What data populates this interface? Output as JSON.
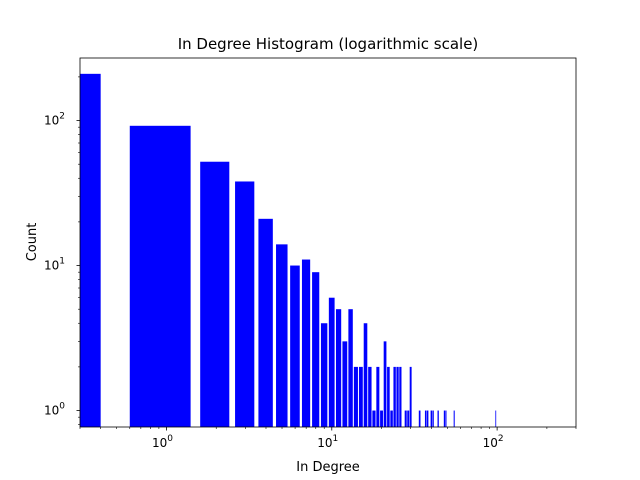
{
  "chart_data": {
    "type": "bar",
    "title": "In Degree Histogram (logarithmic scale)",
    "xlabel": "In Degree",
    "ylabel": "Count",
    "xscale": "log",
    "yscale": "log",
    "xlim": [
      0.3,
      300
    ],
    "ylim": [
      0.77,
      270
    ],
    "grid": false,
    "bar_color": "#0000ff",
    "x_ticks": [
      {
        "value": 1,
        "base": "10",
        "exp": "0"
      },
      {
        "value": 10,
        "base": "10",
        "exp": "1"
      },
      {
        "value": 100,
        "base": "10",
        "exp": "2"
      }
    ],
    "y_ticks": [
      {
        "value": 1,
        "base": "10",
        "exp": "0"
      },
      {
        "value": 10,
        "base": "10",
        "exp": "1"
      },
      {
        "value": 100,
        "base": "10",
        "exp": "2"
      }
    ],
    "bars": [
      {
        "x": 0,
        "count": 210
      },
      {
        "x": 1,
        "count": 92
      },
      {
        "x": 2,
        "count": 52
      },
      {
        "x": 3,
        "count": 38
      },
      {
        "x": 4,
        "count": 21
      },
      {
        "x": 5,
        "count": 14
      },
      {
        "x": 6,
        "count": 10
      },
      {
        "x": 7,
        "count": 11
      },
      {
        "x": 8,
        "count": 9
      },
      {
        "x": 9,
        "count": 4
      },
      {
        "x": 10,
        "count": 6
      },
      {
        "x": 11,
        "count": 5
      },
      {
        "x": 12,
        "count": 3
      },
      {
        "x": 13,
        "count": 5
      },
      {
        "x": 14,
        "count": 2
      },
      {
        "x": 15,
        "count": 2
      },
      {
        "x": 16,
        "count": 4
      },
      {
        "x": 17,
        "count": 2
      },
      {
        "x": 18,
        "count": 1
      },
      {
        "x": 19,
        "count": 2
      },
      {
        "x": 20,
        "count": 1
      },
      {
        "x": 21,
        "count": 3
      },
      {
        "x": 22,
        "count": 2
      },
      {
        "x": 23,
        "count": 1
      },
      {
        "x": 24,
        "count": 2
      },
      {
        "x": 25,
        "count": 2
      },
      {
        "x": 26,
        "count": 2
      },
      {
        "x": 28,
        "count": 1
      },
      {
        "x": 29,
        "count": 1
      },
      {
        "x": 30,
        "count": 2
      },
      {
        "x": 34,
        "count": 1
      },
      {
        "x": 37,
        "count": 1
      },
      {
        "x": 38,
        "count": 1
      },
      {
        "x": 40,
        "count": 1
      },
      {
        "x": 41,
        "count": 1
      },
      {
        "x": 44,
        "count": 1
      },
      {
        "x": 48,
        "count": 1
      },
      {
        "x": 49,
        "count": 1
      },
      {
        "x": 55,
        "count": 1
      },
      {
        "x": 98,
        "count": 1
      }
    ]
  }
}
